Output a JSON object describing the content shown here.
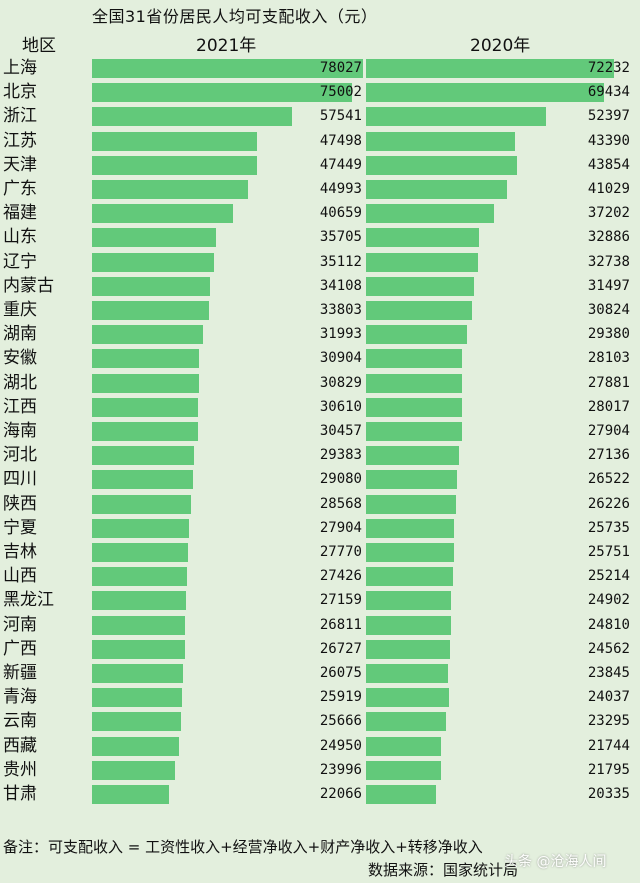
{
  "chart_data": {
    "type": "bar",
    "title": "全国31省份居民人均可支配收入（元）",
    "category_header": "地区",
    "categories": [
      "上海",
      "北京",
      "浙江",
      "江苏",
      "天津",
      "广东",
      "福建",
      "山东",
      "辽宁",
      "内蒙古",
      "重庆",
      "湖南",
      "安徽",
      "湖北",
      "江西",
      "海南",
      "河北",
      "四川",
      "陕西",
      "宁夏",
      "吉林",
      "山西",
      "黑龙江",
      "河南",
      "广西",
      "新疆",
      "青海",
      "云南",
      "西藏",
      "贵州",
      "甘肃"
    ],
    "series": [
      {
        "name": "2021年",
        "values": [
          78027,
          75002,
          57541,
          47498,
          47449,
          44993,
          40659,
          35705,
          35112,
          34108,
          33803,
          31993,
          30904,
          30829,
          30610,
          30457,
          29383,
          29080,
          28568,
          27904,
          27770,
          27426,
          27159,
          26811,
          26727,
          26075,
          25919,
          25666,
          24950,
          23996,
          22066
        ]
      },
      {
        "name": "2020年",
        "values": [
          72232,
          69434,
          52397,
          43390,
          43854,
          41029,
          37202,
          32886,
          32738,
          31497,
          30824,
          29380,
          28103,
          27881,
          28017,
          27904,
          27136,
          26522,
          26226,
          25735,
          25751,
          25214,
          24902,
          24810,
          24562,
          23845,
          24037,
          23295,
          21744,
          21795,
          20335
        ]
      }
    ],
    "orientation": "horizontal",
    "bar_color": "#62c97a",
    "value_labels": true,
    "xlim": [
      0,
      78027
    ],
    "note": "备注：可支配收入 = 工资性收入+经营净收入+财产净收入+转移净收入",
    "source": "数据来源：国家统计局",
    "watermark": "头条 @沧海人间"
  }
}
